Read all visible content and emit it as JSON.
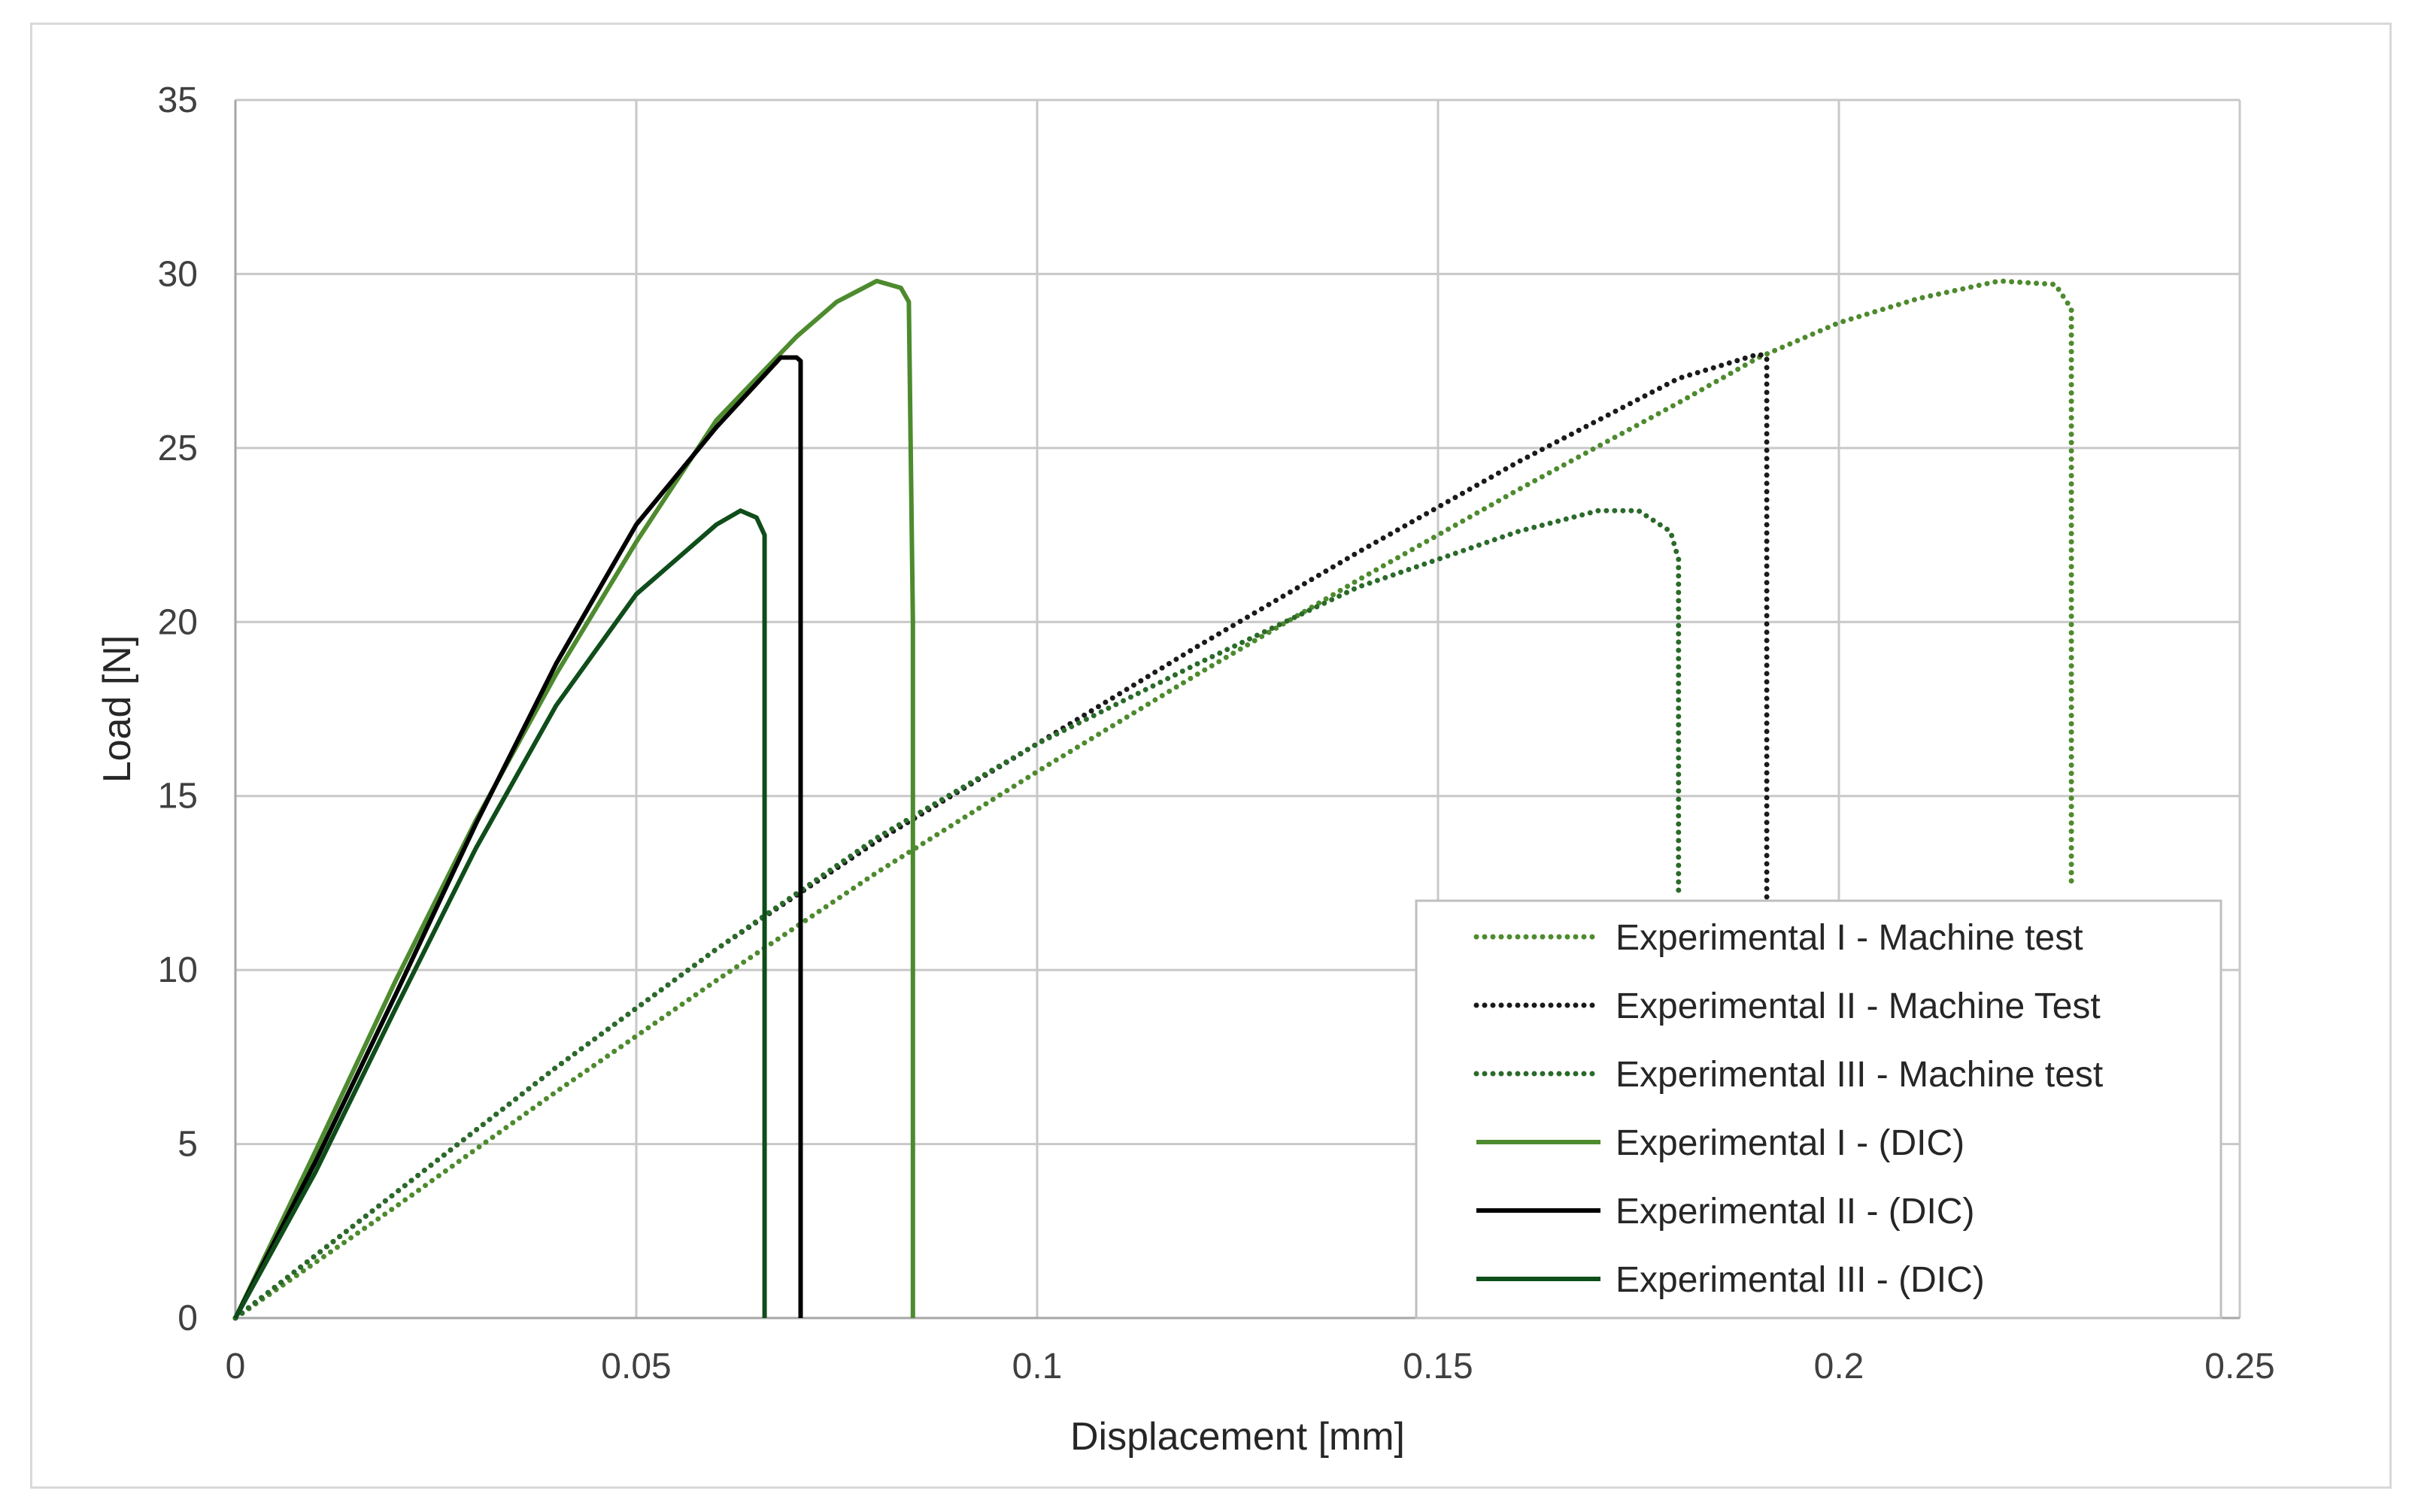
{
  "chart_data": {
    "type": "line",
    "title": "",
    "xlabel": "Displacement [mm]",
    "ylabel": "Load [N]",
    "xlim": [
      0,
      0.25
    ],
    "ylim": [
      0,
      35
    ],
    "xticks": [
      "0",
      "0.05",
      "0.1",
      "0.15",
      "0.2",
      "0.25"
    ],
    "xtick_values": [
      0,
      0.05,
      0.1,
      0.15,
      0.2,
      0.25
    ],
    "yticks": [
      "0",
      "5",
      "10",
      "15",
      "20",
      "25",
      "30",
      "35"
    ],
    "ytick_values": [
      0,
      5,
      10,
      15,
      20,
      25,
      30,
      35
    ],
    "grid": true,
    "legend_position": "bottom-right",
    "series": [
      {
        "name": "Experimental I - Machine test",
        "style": "dotted",
        "color": "#4e8a2e",
        "x": [
          0,
          0.02,
          0.04,
          0.06,
          0.08,
          0.1,
          0.12,
          0.14,
          0.16,
          0.18,
          0.19,
          0.2,
          0.21,
          0.22,
          0.227,
          0.229,
          0.229
        ],
        "y": [
          0,
          3.2,
          6.5,
          9.7,
          12.8,
          15.7,
          18.5,
          21.2,
          23.8,
          26.3,
          27.6,
          28.6,
          29.3,
          29.8,
          29.7,
          29.0,
          12.5
        ]
      },
      {
        "name": "Experimental II - Machine Test",
        "style": "dotted",
        "color": "#1a1a1a",
        "x": [
          0,
          0.02,
          0.04,
          0.06,
          0.08,
          0.1,
          0.12,
          0.14,
          0.16,
          0.17,
          0.18,
          0.19,
          0.191,
          0.191
        ],
        "y": [
          0,
          3.6,
          7.2,
          10.6,
          13.7,
          16.5,
          19.3,
          22.0,
          24.6,
          25.8,
          27.0,
          27.7,
          27.6,
          11.8
        ]
      },
      {
        "name": "Experimental III - Machine test",
        "style": "dotted",
        "color": "#2a6a2a",
        "x": [
          0,
          0.02,
          0.04,
          0.06,
          0.08,
          0.1,
          0.12,
          0.14,
          0.16,
          0.17,
          0.175,
          0.179,
          0.18,
          0.18
        ],
        "y": [
          0,
          3.6,
          7.2,
          10.6,
          13.8,
          16.5,
          18.8,
          21.0,
          22.6,
          23.2,
          23.2,
          22.6,
          21.8,
          12.2
        ]
      },
      {
        "name": "Experimental I - (DIC)",
        "style": "solid",
        "color": "#4d8b2e",
        "x": [
          0,
          0.01,
          0.02,
          0.03,
          0.04,
          0.05,
          0.06,
          0.07,
          0.075,
          0.08,
          0.083,
          0.084,
          0.0845,
          0.0845
        ],
        "y": [
          0,
          4.8,
          9.7,
          14.3,
          18.5,
          22.3,
          25.8,
          28.2,
          29.2,
          29.8,
          29.6,
          29.2,
          20.0,
          0
        ]
      },
      {
        "name": "Experimental II - (DIC)",
        "style": "solid",
        "color": "#000000",
        "x": [
          0,
          0.01,
          0.02,
          0.03,
          0.04,
          0.05,
          0.06,
          0.068,
          0.07,
          0.0705,
          0.0705
        ],
        "y": [
          0,
          4.5,
          9.3,
          14.2,
          18.8,
          22.8,
          25.6,
          27.6,
          27.6,
          27.5,
          0
        ]
      },
      {
        "name": "Experimental III - (DIC)",
        "style": "solid",
        "color": "#0f4d1a",
        "x": [
          0,
          0.01,
          0.02,
          0.03,
          0.04,
          0.05,
          0.06,
          0.063,
          0.065,
          0.066,
          0.066
        ],
        "y": [
          0,
          4.2,
          8.9,
          13.5,
          17.6,
          20.8,
          22.8,
          23.2,
          23.0,
          22.5,
          0
        ]
      }
    ]
  }
}
